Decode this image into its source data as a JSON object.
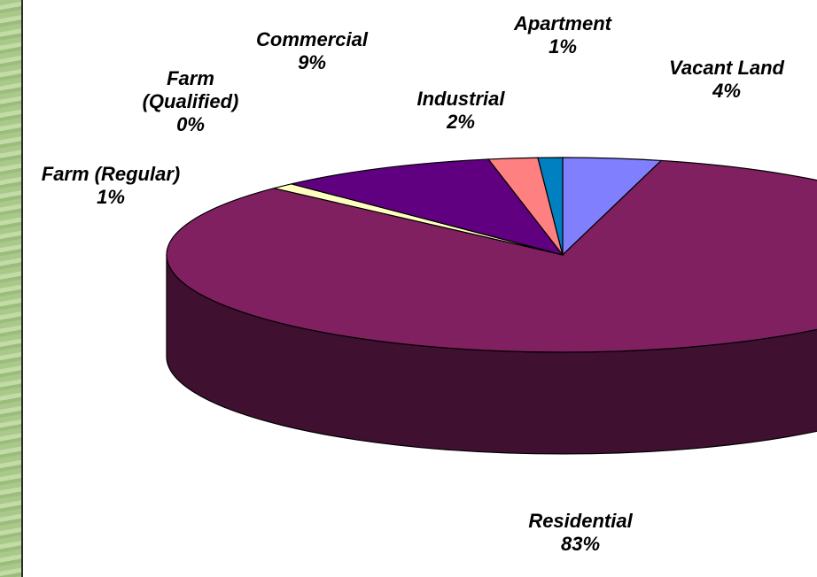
{
  "chart_data": {
    "type": "pie",
    "categories": [
      "Vacant Land",
      "Residential",
      "Farm (Regular)",
      "Farm (Qualified)",
      "Commercial",
      "Industrial",
      "Apartment"
    ],
    "values": [
      4,
      83,
      1,
      0,
      9,
      2,
      1
    ],
    "value_labels": [
      "4%",
      "83%",
      "1%",
      "0%",
      "9%",
      "2%",
      "1%"
    ],
    "colors": [
      "#8080ff",
      "#802060",
      "#ffffc0",
      "#a0e0e0",
      "#600080",
      "#ff8080",
      "#0080c0"
    ]
  }
}
